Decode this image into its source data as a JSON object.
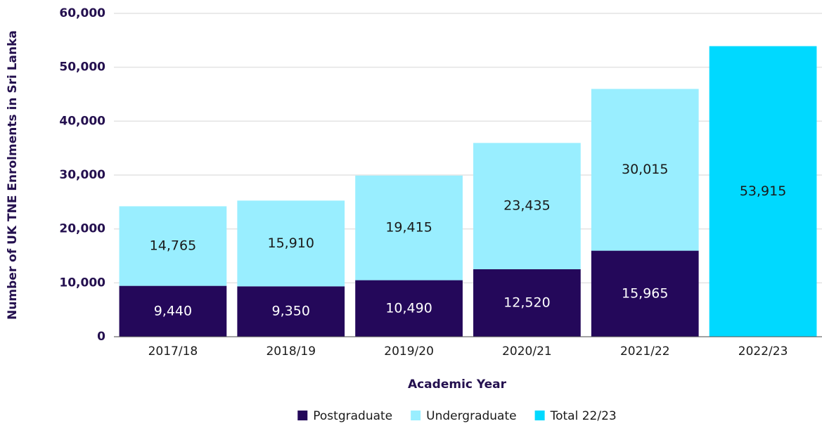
{
  "chart_data": {
    "type": "stacked_bar",
    "x_label": "Academic Year",
    "y_label": "Number of UK TNE Enrolments in Sri Lanka",
    "categories": [
      "2017/18",
      "2018/19",
      "2019/20",
      "2020/21",
      "2021/22",
      "2022/23"
    ],
    "series": [
      {
        "name": "Postgraduate",
        "color": "#24085a",
        "values": [
          9440,
          9350,
          10490,
          12520,
          15965,
          null
        ],
        "value_labels": [
          "9,440",
          "9,350",
          "10,490",
          "12,520",
          "15,965",
          null
        ]
      },
      {
        "name": "Undergraduate",
        "color": "#99eeff",
        "values": [
          14765,
          15910,
          19415,
          23435,
          30015,
          null
        ],
        "value_labels": [
          "14,765",
          "15,910",
          "19,415",
          "23,435",
          "30,015",
          null
        ]
      },
      {
        "name": "Total 22/23",
        "color": "#00d9ff",
        "values": [
          null,
          null,
          null,
          null,
          null,
          53915
        ],
        "value_labels": [
          null,
          null,
          null,
          null,
          null,
          "53,915"
        ]
      }
    ],
    "ylim": [
      0,
      60000
    ],
    "yticks": [
      0,
      {
        "value": 10000,
        "label": "10,000"
      },
      {
        "value": 20000,
        "label": "20,000"
      },
      {
        "value": 30000,
        "label": "30,000"
      },
      {
        "value": 40000,
        "label": "40,000"
      },
      {
        "value": 50000,
        "label": "50,000"
      },
      {
        "value": 60000,
        "label": "60,000"
      }
    ],
    "grid": true,
    "legend": "bottom"
  }
}
